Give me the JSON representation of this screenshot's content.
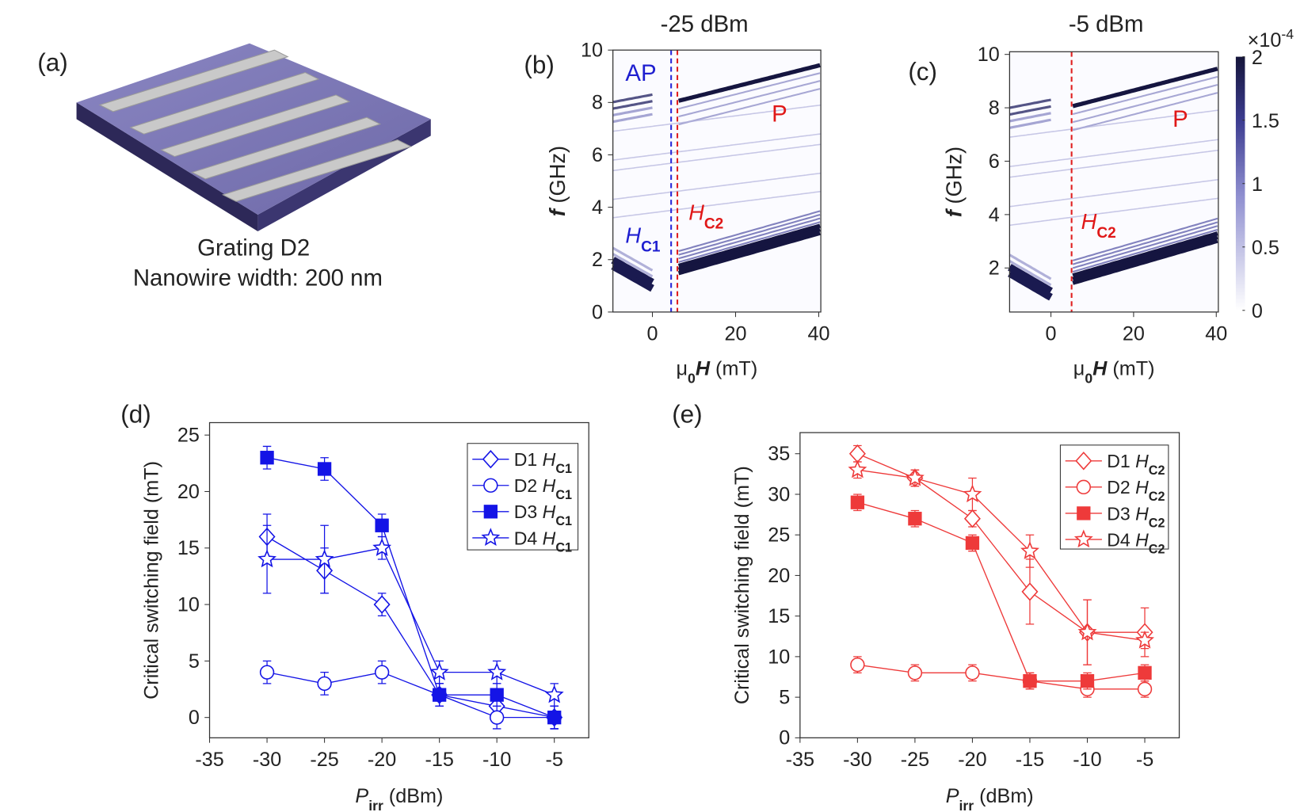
{
  "panel_a": {
    "label": "(a)",
    "caption": [
      "Grating D2",
      "Nanowire width: 200 nm"
    ]
  },
  "chart_data": [
    {
      "type": "heatmap",
      "label": "(b)",
      "title": "-25 dBm",
      "xlabel": "μ0H (mT)",
      "ylabel": "f (GHz)",
      "xlim": [
        -9.5,
        40.5
      ],
      "xticks": [
        0,
        20,
        40
      ],
      "ylim": [
        0,
        10
      ],
      "yticks": [
        0,
        2,
        4,
        6,
        8,
        10
      ],
      "annotations": [
        {
          "text": "AP",
          "color": "#1f1fd0"
        },
        {
          "text": "P",
          "color": "#e01818"
        },
        {
          "text": "HC1",
          "color": "#1f1fd0"
        },
        {
          "text": "HC2",
          "color": "#e01818"
        }
      ],
      "vlines": [
        {
          "value": 4.5,
          "color": "#2a2ad8"
        },
        {
          "value": 6,
          "color": "#e02020"
        }
      ]
    },
    {
      "type": "heatmap",
      "label": "(c)",
      "title": "-5 dBm",
      "xlabel": "μ0H (mT)",
      "ylabel": "f (GHz)",
      "xlim": [
        -10,
        40.5
      ],
      "xticks": [
        0,
        20,
        40
      ],
      "ylim": [
        0.35,
        10.1
      ],
      "yticks": [
        2,
        4,
        6,
        8,
        10
      ],
      "annotations": [
        {
          "text": "P",
          "color": "#e01818"
        },
        {
          "text": "HC2",
          "color": "#e01818"
        }
      ],
      "vlines": [
        {
          "value": 5,
          "color": "#e02020"
        }
      ],
      "colorbar": {
        "lim": [
          0,
          2
        ],
        "ticks": [
          0,
          0.5,
          1,
          1.5,
          2
        ],
        "label": "×10-4"
      }
    },
    {
      "type": "line",
      "label": "(d)",
      "xlabel": "Pirr (dBm)",
      "ylabel": "Critical switching field (mT)",
      "xlim": [
        -35,
        -2
      ],
      "xticks": [
        -35,
        -30,
        -25,
        -20,
        -15,
        -10,
        -5
      ],
      "ylim": [
        -1.8,
        26.1
      ],
      "yticks": [
        0,
        5,
        10,
        15,
        20,
        25
      ],
      "x": [
        -30,
        -25,
        -20,
        -15,
        -10,
        -5
      ],
      "series": [
        {
          "name": "D1 HC1",
          "color": "#1414e6",
          "marker": "diamond",
          "filled": false,
          "values": [
            16,
            13,
            10,
            2,
            1,
            0
          ],
          "errors": [
            2,
            2,
            1,
            1,
            1.5,
            1
          ]
        },
        {
          "name": "D2 HC1",
          "color": "#1414e6",
          "marker": "circle",
          "filled": false,
          "values": [
            4,
            3,
            4,
            2,
            0,
            0
          ],
          "errors": [
            1,
            1,
            1,
            1,
            1,
            1
          ]
        },
        {
          "name": "D3 HC1",
          "color": "#1414e6",
          "marker": "square",
          "filled": true,
          "values": [
            23,
            22,
            17,
            2,
            2,
            0
          ],
          "errors": [
            1,
            1,
            1,
            1,
            1,
            1
          ]
        },
        {
          "name": "D4 HC1",
          "color": "#1414e6",
          "marker": "star",
          "filled": false,
          "values": [
            14,
            14,
            15,
            4,
            4,
            2
          ],
          "errors": [
            3,
            3,
            1,
            1,
            1,
            1
          ]
        }
      ]
    },
    {
      "type": "line",
      "label": "(e)",
      "xlabel": "Pirr (dBm)",
      "ylabel": "Critical switching field (mT)",
      "xlim": [
        -35,
        -2
      ],
      "xticks": [
        -35,
        -30,
        -25,
        -20,
        -15,
        -10,
        -5
      ],
      "ylim": [
        0,
        37.6
      ],
      "yticks": [
        0,
        5,
        10,
        15,
        20,
        25,
        30,
        35
      ],
      "x": [
        -30,
        -25,
        -20,
        -15,
        -10,
        -5
      ],
      "series": [
        {
          "name": "D1 HC2",
          "color": "#ee3a3a",
          "marker": "diamond",
          "filled": false,
          "values": [
            35,
            32,
            27,
            18,
            13,
            13
          ],
          "errors": [
            1,
            1,
            1,
            4,
            4,
            3
          ]
        },
        {
          "name": "D2 HC2",
          "color": "#ee3a3a",
          "marker": "circle",
          "filled": false,
          "values": [
            9,
            8,
            8,
            7,
            6,
            6
          ],
          "errors": [
            1,
            1,
            1,
            1,
            1,
            1
          ]
        },
        {
          "name": "D3 HC2",
          "color": "#ee3a3a",
          "marker": "square",
          "filled": true,
          "values": [
            29,
            27,
            24,
            7,
            7,
            8
          ],
          "errors": [
            1,
            1,
            1,
            1,
            1,
            1
          ]
        },
        {
          "name": "D4 HC2",
          "color": "#ee3a3a",
          "marker": "star",
          "filled": false,
          "values": [
            33,
            32,
            30,
            23,
            13,
            12
          ],
          "errors": [
            1,
            1,
            2,
            2,
            4,
            1
          ]
        }
      ]
    }
  ]
}
